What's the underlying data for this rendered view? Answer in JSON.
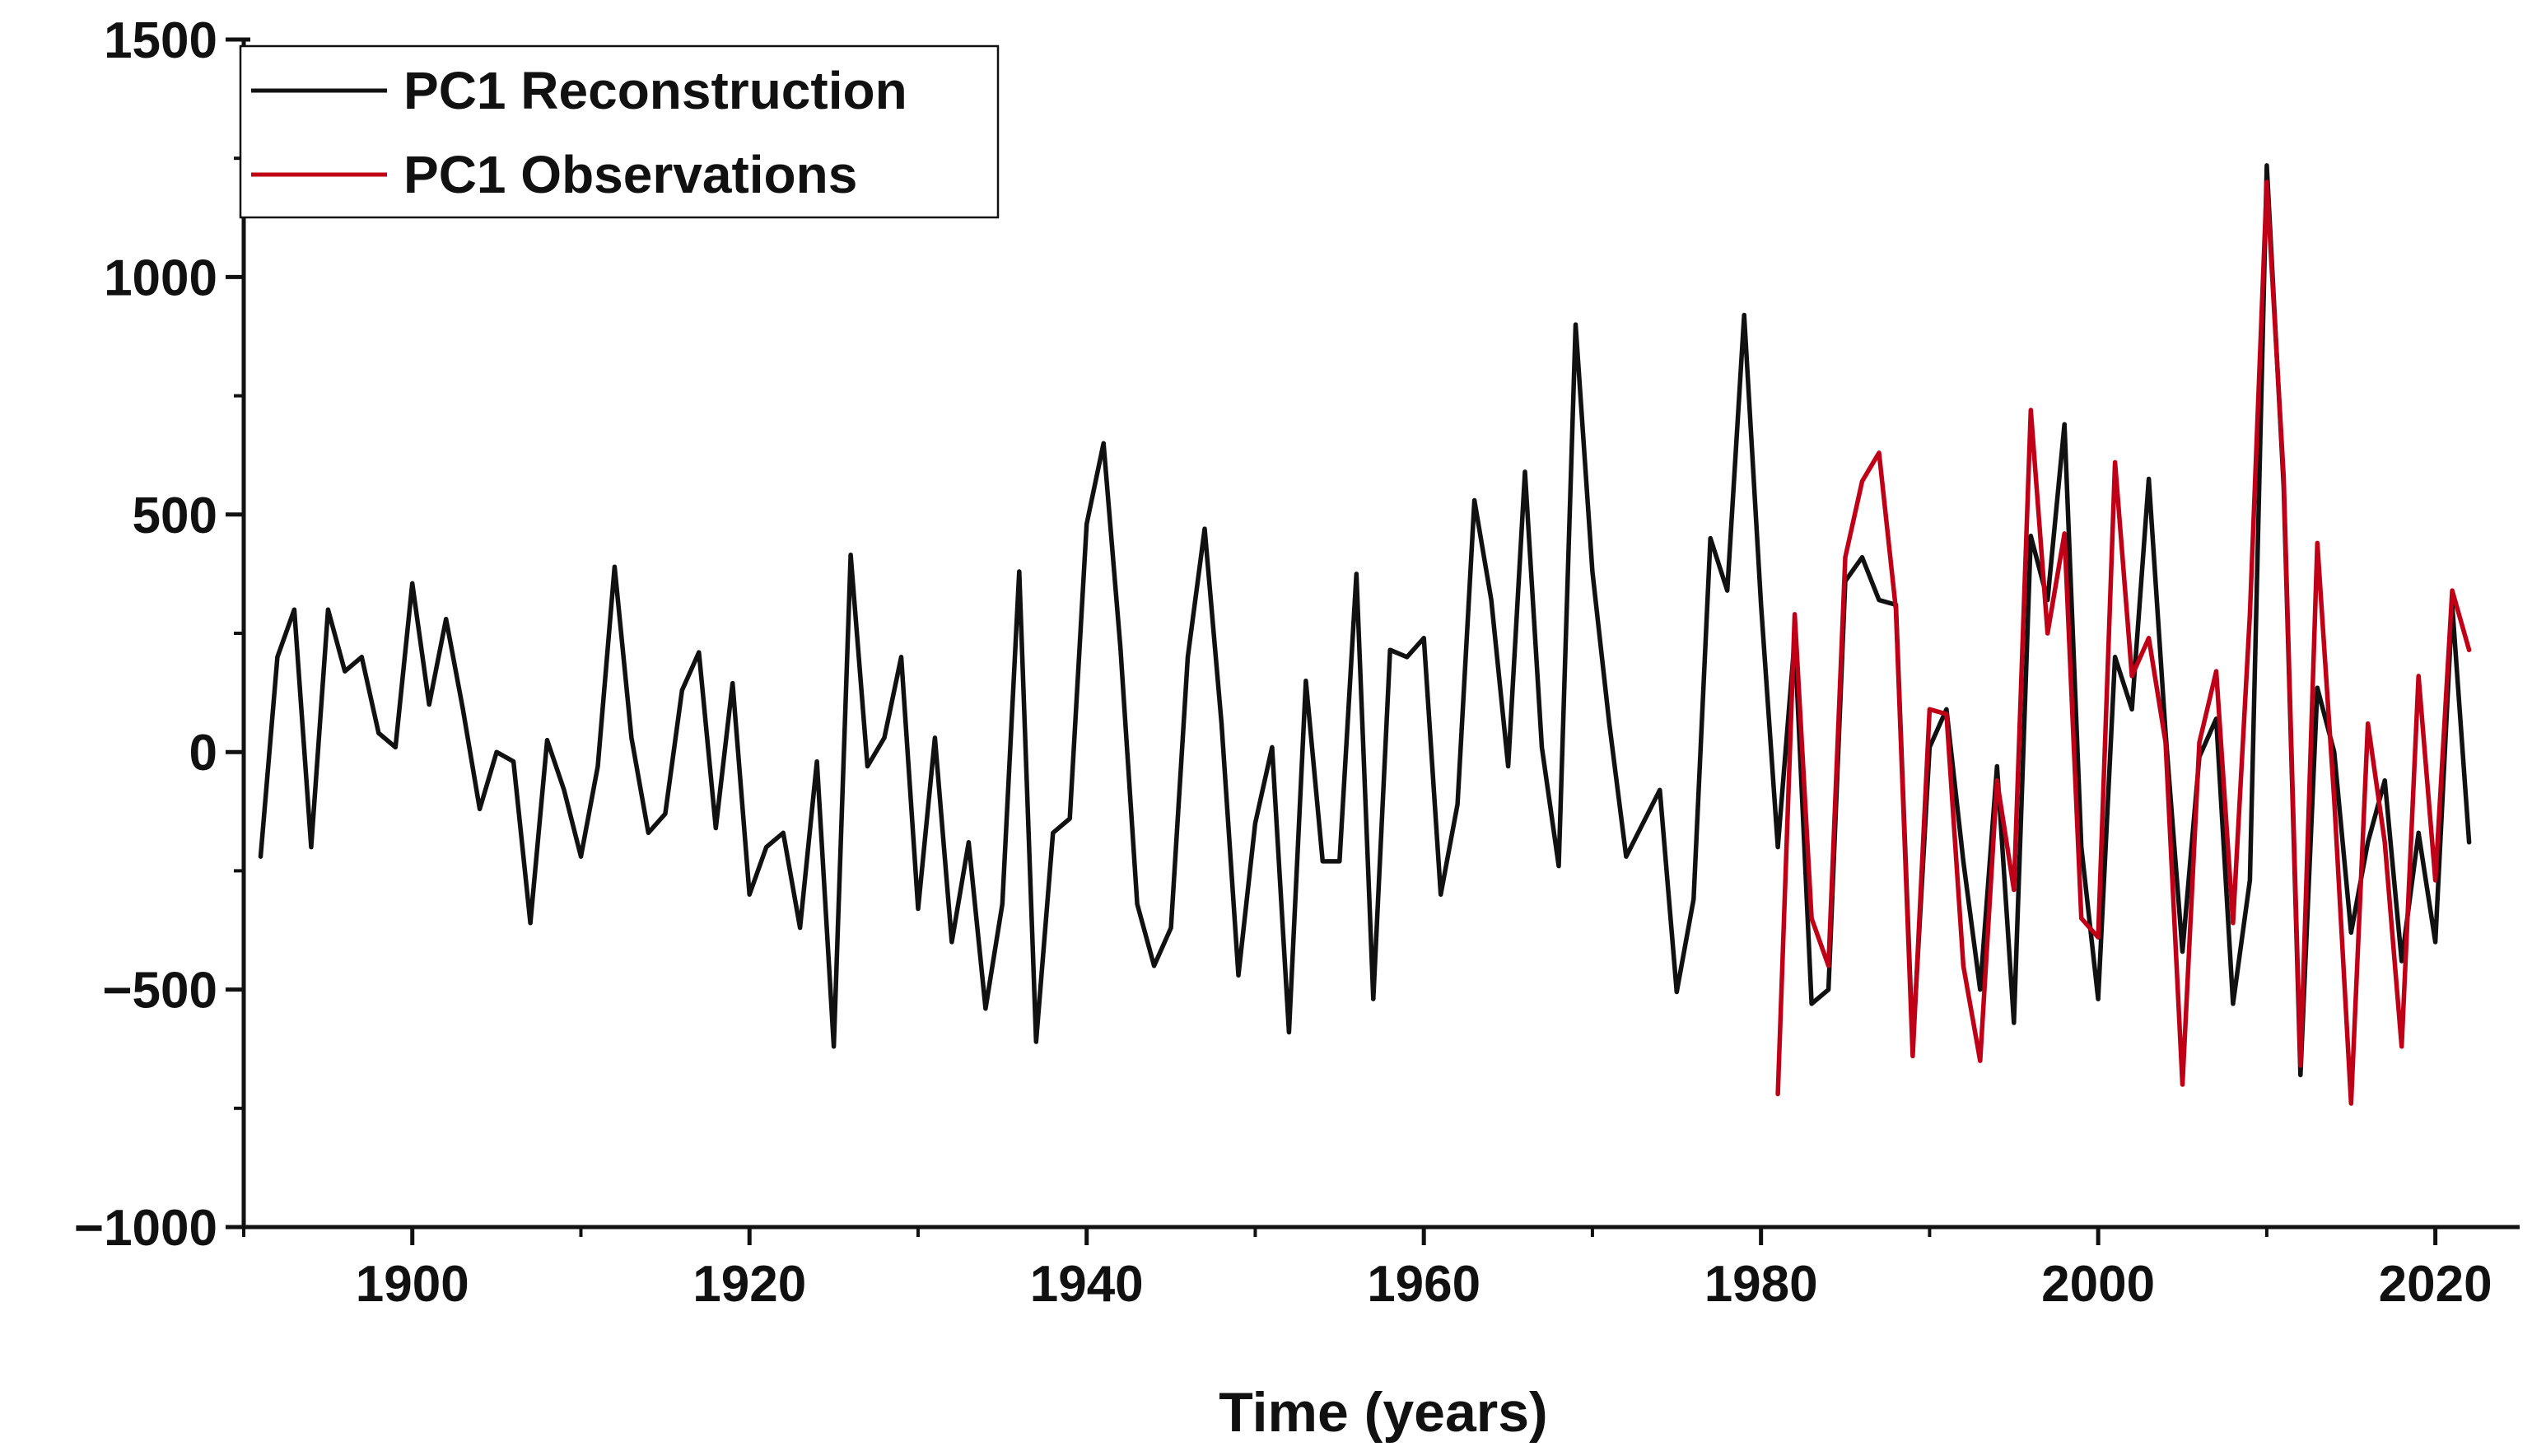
{
  "chart_data": {
    "type": "line",
    "title": "",
    "xlabel": "Time (years)",
    "ylabel": "",
    "xlim": [
      1890,
      2025
    ],
    "ylim": [
      -1000,
      1500
    ],
    "x_ticks": [
      1900,
      1920,
      1940,
      1960,
      1980,
      2000,
      2020
    ],
    "x_tick_labels": [
      "1900",
      "1920",
      "1940",
      "1960",
      "1980",
      "2000",
      "2020"
    ],
    "y_ticks": [
      -1000,
      -500,
      0,
      500,
      1000,
      1500
    ],
    "y_tick_labels": [
      "−1000",
      "−500",
      "0",
      "500",
      "1000",
      "1500"
    ],
    "legend_position": "top-left",
    "series": [
      {
        "name": "PC1 Reconstruction",
        "color": "#111111",
        "x": [
          1891,
          1892,
          1893,
          1894,
          1895,
          1896,
          1897,
          1898,
          1899,
          1900,
          1901,
          1902,
          1903,
          1904,
          1905,
          1906,
          1907,
          1908,
          1909,
          1910,
          1911,
          1912,
          1913,
          1914,
          1915,
          1916,
          1917,
          1918,
          1919,
          1920,
          1921,
          1922,
          1923,
          1924,
          1925,
          1926,
          1927,
          1928,
          1929,
          1930,
          1931,
          1932,
          1933,
          1934,
          1935,
          1936,
          1937,
          1938,
          1939,
          1940,
          1941,
          1942,
          1943,
          1944,
          1945,
          1946,
          1947,
          1948,
          1949,
          1950,
          1951,
          1952,
          1953,
          1954,
          1955,
          1956,
          1957,
          1958,
          1959,
          1960,
          1961,
          1962,
          1963,
          1964,
          1965,
          1966,
          1967,
          1968,
          1969,
          1970,
          1971,
          1972,
          1973,
          1974,
          1975,
          1976,
          1977,
          1978,
          1979,
          1980,
          1981,
          1982,
          1983,
          1984,
          1985,
          1986,
          1987,
          1988,
          1989,
          1990,
          1991,
          1992,
          1993,
          1994,
          1995,
          1996,
          1997,
          1998,
          1999,
          2000,
          2001,
          2002,
          2003,
          2004,
          2005,
          2006,
          2007,
          2008,
          2009,
          2010,
          2011,
          2012,
          2013,
          2014,
          2015,
          2016,
          2017,
          2018,
          2019,
          2020,
          2021,
          2022
        ],
        "values": [
          -220,
          200,
          300,
          -200,
          300,
          170,
          200,
          40,
          10,
          355,
          100,
          280,
          90,
          -120,
          0,
          -20,
          -360,
          25,
          -80,
          -220,
          -30,
          390,
          30,
          -170,
          -130,
          130,
          210,
          -160,
          145,
          -300,
          -200,
          -170,
          -370,
          -20,
          -620,
          415,
          -30,
          30,
          200,
          -330,
          30,
          -400,
          -190,
          -540,
          -320,
          380,
          -610,
          -170,
          -140,
          480,
          650,
          220,
          -320,
          -450,
          -370,
          200,
          470,
          60,
          -470,
          -150,
          10,
          -590,
          150,
          -230,
          -230,
          375,
          -520,
          215,
          200,
          240,
          -300,
          -110,
          530,
          320,
          -30,
          590,
          10,
          -240,
          900,
          380,
          60,
          -220,
          -150,
          -80,
          -505,
          -310,
          450,
          340,
          920,
          310,
          -200,
          240,
          -530,
          -500,
          360,
          410,
          320,
          310,
          -620,
          10,
          90,
          -230,
          -500,
          -30,
          -570,
          455,
          320,
          690,
          -200,
          -520,
          200,
          90,
          575,
          40,
          -420,
          -10,
          70,
          -530,
          -270,
          1235,
          560,
          -680,
          135,
          0,
          -380,
          -190,
          -60,
          -440,
          -170,
          -400,
          310,
          -190
        ]
      },
      {
        "name": "PC1 Observations",
        "color": "#c00016",
        "x": [
          1981,
          1982,
          1983,
          1984,
          1985,
          1986,
          1987,
          1988,
          1989,
          1990,
          1991,
          1992,
          1993,
          1994,
          1995,
          1996,
          1997,
          1998,
          1999,
          2000,
          2001,
          2002,
          2003,
          2004,
          2005,
          2006,
          2007,
          2008,
          2009,
          2010,
          2011,
          2012,
          2013,
          2014,
          2015,
          2016,
          2017,
          2018,
          2019,
          2020,
          2021,
          2022
        ],
        "values": [
          -720,
          290,
          -350,
          -450,
          410,
          570,
          630,
          300,
          -640,
          90,
          80,
          -450,
          -650,
          -60,
          -290,
          720,
          250,
          460,
          -350,
          -390,
          610,
          160,
          240,
          20,
          -700,
          20,
          170,
          -360,
          290,
          1200,
          580,
          -660,
          440,
          -100,
          -740,
          60,
          -190,
          -620,
          160,
          -270,
          340,
          215
        ]
      }
    ]
  }
}
